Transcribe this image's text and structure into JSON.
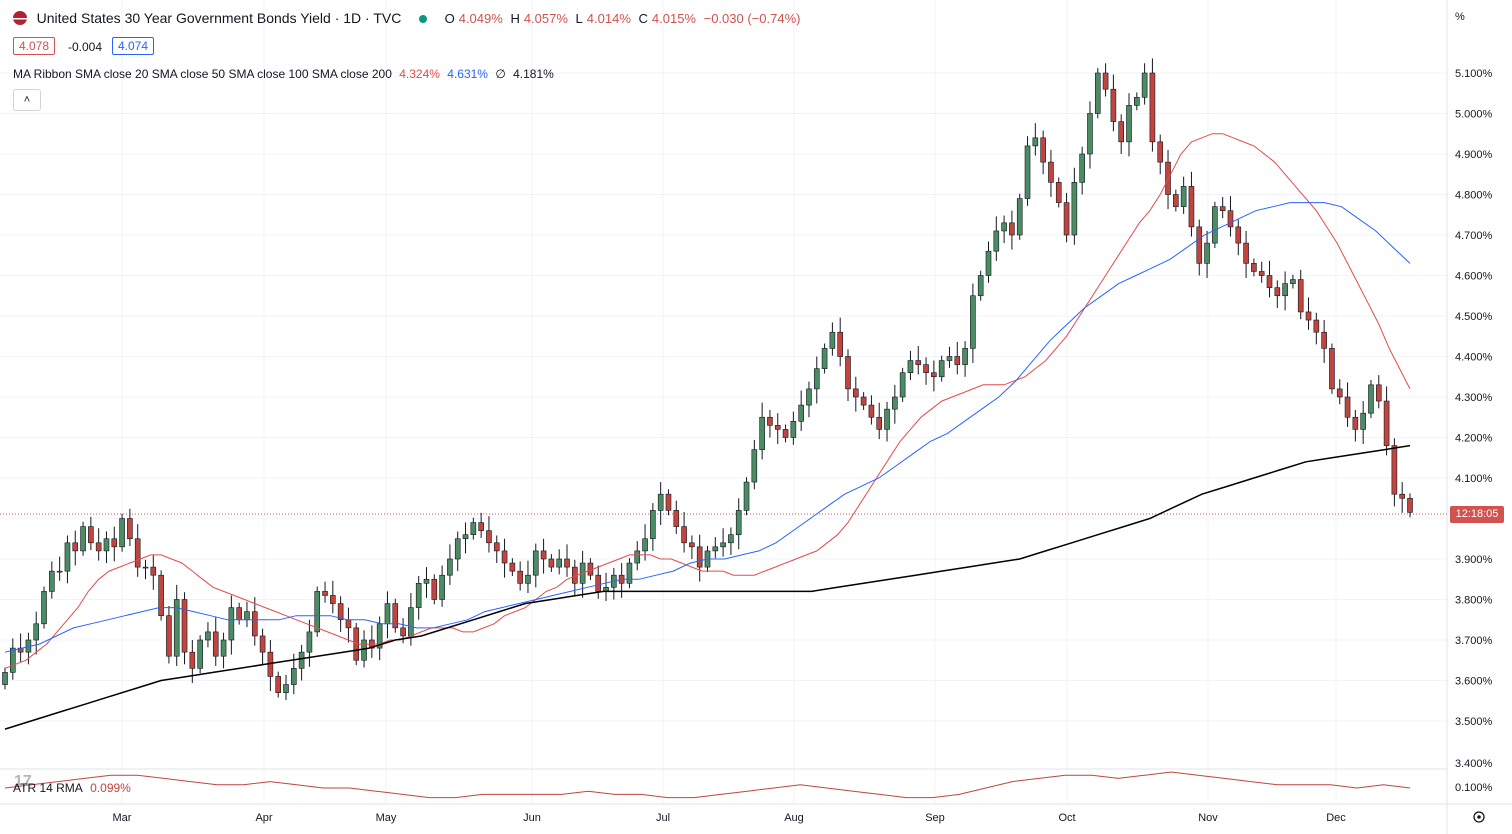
{
  "header": {
    "title": "United States 30 Year Government Bonds Yield · 1D · TVC",
    "ohlc": [
      {
        "label": "O",
        "value": "4.049%"
      },
      {
        "label": "H",
        "value": "4.057%"
      },
      {
        "label": "L",
        "value": "4.014%"
      },
      {
        "label": "C",
        "value": "4.015%"
      }
    ],
    "change": "−0.030 (−0.74%)",
    "bid": "4.078",
    "spread": "-0.004",
    "ask": "4.074",
    "indicator_name": "MA Ribbon SMA close 20 SMA close 50 SMA close 100 SMA close 200",
    "indicator_values": [
      {
        "value": "4.324%",
        "color": "#e24c4c"
      },
      {
        "value": "4.631%",
        "color": "#2962ff"
      },
      {
        "value": "∅",
        "color": "#131722"
      },
      {
        "value": "4.181%",
        "color": "#131722"
      }
    ],
    "collapse_icon": "chevron-up-icon"
  },
  "atr_label": "ATR 14 RMA",
  "atr_value": "0.099%",
  "countdown": "12:18:05",
  "unit_label": "%",
  "colors": {
    "up": "#4b8c63",
    "down": "#c0453f",
    "sma20": "#e24c4c",
    "sma50": "#2962ff",
    "sma200": "#000000",
    "atr": "#c0453f",
    "grid": "#f0f3fa"
  },
  "chart_data": {
    "type": "candlestick",
    "title": "United States 30 Year Government Bonds Yield",
    "y_axis": {
      "unit": "%",
      "ticks": [
        3.5,
        3.6,
        3.7,
        3.8,
        3.9,
        4.0,
        4.1,
        4.2,
        4.3,
        4.4,
        4.5,
        4.6,
        4.7,
        4.8,
        4.9,
        5.0,
        5.1
      ],
      "labels": [
        "3.500%",
        "3.600%",
        "3.700%",
        "3.800%",
        "3.900%",
        "4.000%",
        "4.100%",
        "4.200%",
        "4.300%",
        "4.400%",
        "4.500%",
        "4.600%",
        "4.700%",
        "4.800%",
        "4.900%",
        "5.000%",
        "5.100%"
      ]
    },
    "x_axis": {
      "labels": [
        "Mar",
        "Apr",
        "May",
        "Jun",
        "Jul",
        "Aug",
        "Sep",
        "Oct",
        "Nov",
        "Dec"
      ]
    },
    "atr_axis": {
      "labels": [
        "3.400%",
        "0.100%"
      ]
    },
    "closes": [
      3.62,
      3.68,
      3.67,
      3.7,
      3.74,
      3.82,
      3.87,
      3.87,
      3.94,
      3.92,
      3.98,
      3.94,
      3.92,
      3.95,
      3.93,
      4.0,
      3.95,
      3.88,
      3.88,
      3.86,
      3.76,
      3.66,
      3.8,
      3.67,
      3.63,
      3.7,
      3.72,
      3.66,
      3.7,
      3.78,
      3.75,
      3.77,
      3.71,
      3.67,
      3.61,
      3.57,
      3.59,
      3.63,
      3.67,
      3.72,
      3.82,
      3.81,
      3.79,
      3.75,
      3.73,
      3.65,
      3.7,
      3.68,
      3.74,
      3.79,
      3.73,
      3.71,
      3.78,
      3.84,
      3.85,
      3.8,
      3.86,
      3.9,
      3.95,
      3.96,
      3.99,
      3.97,
      3.94,
      3.92,
      3.89,
      3.87,
      3.84,
      3.86,
      3.92,
      3.9,
      3.88,
      3.9,
      3.88,
      3.84,
      3.89,
      3.86,
      3.82,
      3.83,
      3.86,
      3.84,
      3.89,
      3.92,
      3.95,
      4.02,
      4.06,
      4.02,
      3.98,
      3.94,
      3.93,
      3.88,
      3.92,
      3.93,
      3.94,
      3.96,
      4.02,
      4.09,
      4.17,
      4.25,
      4.23,
      4.22,
      4.2,
      4.24,
      4.28,
      4.32,
      4.37,
      4.42,
      4.46,
      4.4,
      4.32,
      4.3,
      4.28,
      4.25,
      4.22,
      4.27,
      4.3,
      4.36,
      4.39,
      4.38,
      4.36,
      4.35,
      4.39,
      4.4,
      4.38,
      4.42,
      4.55,
      4.6,
      4.66,
      4.71,
      4.73,
      4.7,
      4.79,
      4.92,
      4.94,
      4.88,
      4.83,
      4.78,
      4.7,
      4.83,
      4.9,
      5.0,
      5.1,
      5.06,
      4.98,
      4.93,
      5.02,
      5.04,
      5.1,
      4.93,
      4.88,
      4.8,
      4.77,
      4.82,
      4.72,
      4.63,
      4.68,
      4.77,
      4.76,
      4.72,
      4.68,
      4.63,
      4.61,
      4.6,
      4.57,
      4.55,
      4.58,
      4.59,
      4.51,
      4.49,
      4.46,
      4.42,
      4.32,
      4.3,
      4.25,
      4.22,
      4.26,
      4.33,
      4.29,
      4.18,
      4.06,
      4.05,
      4.015
    ],
    "sma20": [
      3.63,
      3.64,
      3.65,
      3.67,
      3.69,
      3.72,
      3.75,
      3.78,
      3.82,
      3.85,
      3.87,
      3.88,
      3.89,
      3.9,
      3.91,
      3.91,
      3.9,
      3.89,
      3.87,
      3.85,
      3.83,
      3.82,
      3.81,
      3.8,
      3.79,
      3.78,
      3.77,
      3.76,
      3.75,
      3.74,
      3.73,
      3.72,
      3.71,
      3.7,
      3.69,
      3.69,
      3.69,
      3.7,
      3.7,
      3.71,
      3.72,
      3.73,
      3.73,
      3.73,
      3.72,
      3.72,
      3.73,
      3.74,
      3.76,
      3.77,
      3.78,
      3.8,
      3.82,
      3.83,
      3.85,
      3.86,
      3.87,
      3.88,
      3.89,
      3.9,
      3.91,
      3.91,
      3.91,
      3.9,
      3.9,
      3.89,
      3.88,
      3.87,
      3.87,
      3.87,
      3.86,
      3.86,
      3.86,
      3.87,
      3.88,
      3.89,
      3.9,
      3.91,
      3.92,
      3.94,
      3.96,
      3.99,
      4.03,
      4.07,
      4.11,
      4.15,
      4.19,
      4.22,
      4.25,
      4.27,
      4.29,
      4.3,
      4.31,
      4.32,
      4.33,
      4.33,
      4.33,
      4.34,
      4.35,
      4.37,
      4.39,
      4.42,
      4.45,
      4.49,
      4.53,
      4.57,
      4.61,
      4.65,
      4.69,
      4.73,
      4.76,
      4.8,
      4.85,
      4.9,
      4.93,
      4.94,
      4.95,
      4.95,
      4.94,
      4.93,
      4.92,
      4.9,
      4.88,
      4.85,
      4.82,
      4.79,
      4.76,
      4.72,
      4.68,
      4.63,
      4.58,
      4.53,
      4.48,
      4.42,
      4.37,
      4.32
    ],
    "sma50": [
      3.67,
      3.68,
      3.69,
      3.71,
      3.73,
      3.74,
      3.75,
      3.76,
      3.77,
      3.78,
      3.78,
      3.77,
      3.76,
      3.75,
      3.75,
      3.75,
      3.75,
      3.76,
      3.76,
      3.76,
      3.75,
      3.75,
      3.74,
      3.74,
      3.73,
      3.73,
      3.74,
      3.75,
      3.77,
      3.78,
      3.79,
      3.8,
      3.81,
      3.82,
      3.83,
      3.84,
      3.85,
      3.85,
      3.86,
      3.87,
      3.89,
      3.9,
      3.9,
      3.91,
      3.92,
      3.94,
      3.97,
      4.0,
      4.03,
      4.06,
      4.08,
      4.1,
      4.13,
      4.16,
      4.19,
      4.21,
      4.24,
      4.27,
      4.3,
      4.34,
      4.39,
      4.44,
      4.48,
      4.52,
      4.55,
      4.58,
      4.6,
      4.62,
      4.64,
      4.67,
      4.7,
      4.72,
      4.74,
      4.76,
      4.77,
      4.78,
      4.78,
      4.78,
      4.77,
      4.74,
      4.71,
      4.67,
      4.63
    ],
    "sma200": [
      3.48,
      3.5,
      3.52,
      3.54,
      3.56,
      3.58,
      3.6,
      3.61,
      3.62,
      3.63,
      3.64,
      3.65,
      3.66,
      3.67,
      3.68,
      3.7,
      3.71,
      3.73,
      3.75,
      3.77,
      3.79,
      3.8,
      3.81,
      3.82,
      3.82,
      3.82,
      3.82,
      3.82,
      3.82,
      3.82,
      3.82,
      3.82,
      3.83,
      3.84,
      3.85,
      3.86,
      3.87,
      3.88,
      3.89,
      3.9,
      3.92,
      3.94,
      3.96,
      3.98,
      4.0,
      4.03,
      4.06,
      4.08,
      4.1,
      4.12,
      4.14,
      4.15,
      4.16,
      4.17,
      4.18
    ],
    "atr": [
      0.1,
      0.11,
      0.12,
      0.13,
      0.14,
      0.14,
      0.13,
      0.12,
      0.11,
      0.11,
      0.12,
      0.11,
      0.1,
      0.1,
      0.09,
      0.08,
      0.07,
      0.07,
      0.08,
      0.08,
      0.08,
      0.08,
      0.09,
      0.08,
      0.08,
      0.07,
      0.07,
      0.08,
      0.09,
      0.1,
      0.11,
      0.1,
      0.09,
      0.08,
      0.07,
      0.07,
      0.08,
      0.1,
      0.12,
      0.13,
      0.14,
      0.14,
      0.13,
      0.14,
      0.15,
      0.14,
      0.13,
      0.12,
      0.11,
      0.11,
      0.11,
      0.1,
      0.11,
      0.1
    ]
  }
}
